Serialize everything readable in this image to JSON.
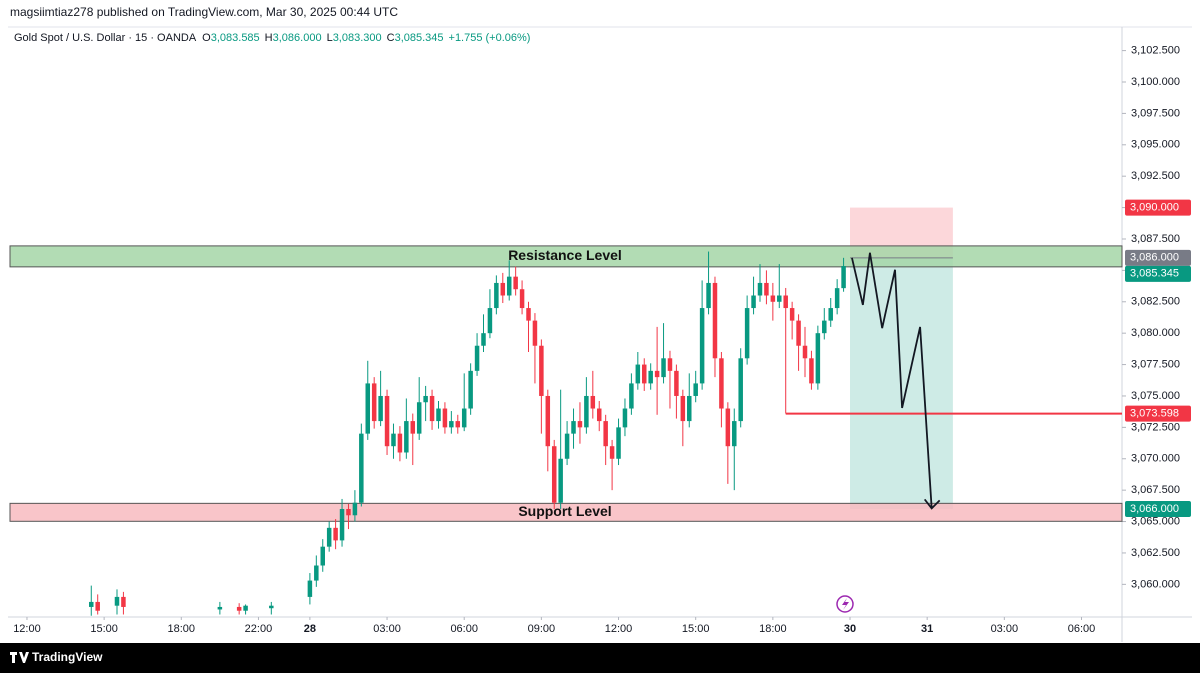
{
  "header": {
    "publisher": "magsiimtiaz278 published on TradingView.com, Mar 30, 2025 00:44 UTC",
    "footer": "TradingView"
  },
  "chart_data": {
    "type": "candlestick",
    "title": "Gold Spot / U.S. Dollar · 15 · OANDA",
    "ohlc_legend": [
      {
        "key": "O",
        "value": "3,083.585"
      },
      {
        "key": "H",
        "value": "3,086.000"
      },
      {
        "key": "L",
        "value": "3,083.300"
      },
      {
        "key": "C",
        "value": "3,085.345"
      }
    ],
    "change": "+1.755 (+0.06%)",
    "up_color": "#089981",
    "down_color": "#f23645",
    "xlim": [
      -2.95,
      170.3
    ],
    "ylim": [
      3057.4,
      3104.3
    ],
    "grid": false,
    "xticks": [
      {
        "value": 0,
        "label": "12:00"
      },
      {
        "value": 12,
        "label": "15:00"
      },
      {
        "value": 24,
        "label": "18:00"
      },
      {
        "value": 36,
        "label": "22:00"
      },
      {
        "value": 44,
        "label": "28"
      },
      {
        "value": 56,
        "label": "03:00"
      },
      {
        "value": 68,
        "label": "06:00"
      },
      {
        "value": 80,
        "label": "09:00"
      },
      {
        "value": 92,
        "label": "12:00"
      },
      {
        "value": 104,
        "label": "15:00"
      },
      {
        "value": 116,
        "label": "18:00"
      },
      {
        "value": 128,
        "label": "30"
      },
      {
        "value": 140,
        "label": "31"
      },
      {
        "value": 152,
        "label": "03:00"
      },
      {
        "value": 164,
        "label": "06:00"
      }
    ],
    "yticks": [
      {
        "value": 3060,
        "label": "3,060.000"
      },
      {
        "value": 3062.5,
        "label": "3,062.500"
      },
      {
        "value": 3065,
        "label": "3,065.000"
      },
      {
        "value": 3067.5,
        "label": "3,067.500"
      },
      {
        "value": 3070,
        "label": "3,070.000"
      },
      {
        "value": 3072.5,
        "label": "3,072.500"
      },
      {
        "value": 3075,
        "label": "3,075.000"
      },
      {
        "value": 3077.5,
        "label": "3,077.500"
      },
      {
        "value": 3080,
        "label": "3,080.000"
      },
      {
        "value": 3082.5,
        "label": "3,082.500"
      },
      {
        "value": 3085,
        "label": "3,085.000"
      },
      {
        "value": 3087.5,
        "label": "3,087.500"
      },
      {
        "value": 3090,
        "label": "3,090.000"
      },
      {
        "value": 3092.5,
        "label": "3,092.500"
      },
      {
        "value": 3095,
        "label": "3,095.000"
      },
      {
        "value": 3097.5,
        "label": "3,097.500"
      },
      {
        "value": 3100,
        "label": "3,100.000"
      },
      {
        "value": 3102.5,
        "label": "3,102.500"
      }
    ],
    "zones": [
      {
        "label": "Resistance Level",
        "low": 3085.28,
        "high": 3086.95,
        "color": "#a5d6a7"
      },
      {
        "label": "Support Level",
        "low": 3065.02,
        "high": 3066.45,
        "color": "#f8bbc0"
      }
    ],
    "position": {
      "x0": 128,
      "x1": 144,
      "stop": {
        "value": 3090,
        "label": "3,090.000"
      },
      "entry": {
        "value": 3086,
        "label": "3,086.000"
      },
      "target": {
        "value": 3066,
        "label": "3,066.000"
      }
    },
    "last_price": {
      "value": 3085.345,
      "label": "3,085.345"
    },
    "hline": {
      "x0": 118,
      "value": 3073.598,
      "label": "3,073.598",
      "color": "#f23645"
    },
    "projection": {
      "x": [
        128.3,
        130,
        131.1,
        133,
        135,
        136.1,
        138.9,
        140.7
      ],
      "y": [
        3086,
        3082.25,
        3086.4,
        3080.4,
        3085.05,
        3074.05,
        3080.5,
        3066.05
      ]
    },
    "candles": [
      {
        "x": 10,
        "o": 3058.2,
        "h": 3059.9,
        "l": 3057.5,
        "c": 3058.6
      },
      {
        "x": 11,
        "o": 3058.6,
        "h": 3059.2,
        "l": 3057.6,
        "c": 3057.9
      },
      {
        "x": 14,
        "o": 3058.3,
        "h": 3059.6,
        "l": 3057.6,
        "c": 3059.0
      },
      {
        "x": 15,
        "o": 3059.0,
        "h": 3059.4,
        "l": 3057.6,
        "c": 3058.2
      },
      {
        "x": 30,
        "o": 3058.0,
        "h": 3058.6,
        "l": 3057.6,
        "c": 3058.2
      },
      {
        "x": 33,
        "o": 3058.2,
        "h": 3058.5,
        "l": 3057.6,
        "c": 3057.9
      },
      {
        "x": 34,
        "o": 3057.9,
        "h": 3058.4,
        "l": 3057.6,
        "c": 3058.3
      },
      {
        "x": 38,
        "o": 3058.1,
        "h": 3058.6,
        "l": 3057.6,
        "c": 3058.3
      },
      {
        "x": 44,
        "o": 3059.0,
        "h": 3060.9,
        "l": 3058.4,
        "c": 3060.3
      },
      {
        "x": 45,
        "o": 3060.3,
        "h": 3062.3,
        "l": 3059.8,
        "c": 3061.5
      },
      {
        "x": 46,
        "o": 3061.5,
        "h": 3063.6,
        "l": 3061,
        "c": 3063
      },
      {
        "x": 47,
        "o": 3063,
        "h": 3065,
        "l": 3062.6,
        "c": 3064.5
      },
      {
        "x": 48,
        "o": 3064.5,
        "h": 3065.2,
        "l": 3062.8,
        "c": 3063.5
      },
      {
        "x": 49,
        "o": 3063.5,
        "h": 3066.8,
        "l": 3063,
        "c": 3066
      },
      {
        "x": 50,
        "o": 3066,
        "h": 3066.4,
        "l": 3064.4,
        "c": 3065.5
      },
      {
        "x": 51,
        "o": 3065.5,
        "h": 3067.5,
        "l": 3065,
        "c": 3066.5
      },
      {
        "x": 52,
        "o": 3066.5,
        "h": 3072.8,
        "l": 3066.2,
        "c": 3072
      },
      {
        "x": 53,
        "o": 3072,
        "h": 3077.8,
        "l": 3071.5,
        "c": 3076
      },
      {
        "x": 54,
        "o": 3076,
        "h": 3076.5,
        "l": 3072.4,
        "c": 3073
      },
      {
        "x": 55,
        "o": 3073,
        "h": 3077,
        "l": 3072.6,
        "c": 3075
      },
      {
        "x": 56,
        "o": 3075,
        "h": 3075.5,
        "l": 3070.3,
        "c": 3071
      },
      {
        "x": 57,
        "o": 3071,
        "h": 3072.8,
        "l": 3070,
        "c": 3072
      },
      {
        "x": 58,
        "o": 3072,
        "h": 3072.6,
        "l": 3069.8,
        "c": 3070.5
      },
      {
        "x": 59,
        "o": 3070.5,
        "h": 3074.8,
        "l": 3070,
        "c": 3073
      },
      {
        "x": 60,
        "o": 3073,
        "h": 3073.6,
        "l": 3069.5,
        "c": 3072
      },
      {
        "x": 61,
        "o": 3072,
        "h": 3076.5,
        "l": 3071.5,
        "c": 3074.5
      },
      {
        "x": 62,
        "o": 3074.5,
        "h": 3075.8,
        "l": 3073,
        "c": 3075
      },
      {
        "x": 63,
        "o": 3075,
        "h": 3075.5,
        "l": 3072.3,
        "c": 3073
      },
      {
        "x": 64,
        "o": 3073,
        "h": 3074.6,
        "l": 3072.4,
        "c": 3074
      },
      {
        "x": 65,
        "o": 3074,
        "h": 3074.5,
        "l": 3072,
        "c": 3072.5
      },
      {
        "x": 66,
        "o": 3072.5,
        "h": 3073.8,
        "l": 3072,
        "c": 3073
      },
      {
        "x": 67,
        "o": 3073,
        "h": 3073.5,
        "l": 3072,
        "c": 3072.5
      },
      {
        "x": 68,
        "o": 3072.5,
        "h": 3076.8,
        "l": 3072.2,
        "c": 3074
      },
      {
        "x": 69,
        "o": 3074,
        "h": 3077.6,
        "l": 3073.5,
        "c": 3077
      },
      {
        "x": 70,
        "o": 3077,
        "h": 3080,
        "l": 3076.6,
        "c": 3079
      },
      {
        "x": 71,
        "o": 3079,
        "h": 3081.5,
        "l": 3078.5,
        "c": 3080
      },
      {
        "x": 72,
        "o": 3080,
        "h": 3083.5,
        "l": 3079.6,
        "c": 3082
      },
      {
        "x": 73,
        "o": 3082,
        "h": 3084.6,
        "l": 3081.5,
        "c": 3084
      },
      {
        "x": 74,
        "o": 3084,
        "h": 3084.8,
        "l": 3082.4,
        "c": 3083
      },
      {
        "x": 75,
        "o": 3083,
        "h": 3085.8,
        "l": 3082.6,
        "c": 3084.5
      },
      {
        "x": 76,
        "o": 3084.5,
        "h": 3085.3,
        "l": 3083,
        "c": 3083.5
      },
      {
        "x": 77,
        "o": 3083.5,
        "h": 3084.2,
        "l": 3081.5,
        "c": 3082
      },
      {
        "x": 78,
        "o": 3082,
        "h": 3082.5,
        "l": 3078.5,
        "c": 3081
      },
      {
        "x": 79,
        "o": 3081,
        "h": 3081.6,
        "l": 3076,
        "c": 3079
      },
      {
        "x": 80,
        "o": 3079,
        "h": 3079.5,
        "l": 3072,
        "c": 3075
      },
      {
        "x": 81,
        "o": 3075,
        "h": 3075.5,
        "l": 3069,
        "c": 3071
      },
      {
        "x": 82,
        "o": 3071,
        "h": 3071.5,
        "l": 3066,
        "c": 3066.5
      },
      {
        "x": 83,
        "o": 3066.5,
        "h": 3075.5,
        "l": 3066,
        "c": 3070
      },
      {
        "x": 84,
        "o": 3070,
        "h": 3073,
        "l": 3069.5,
        "c": 3072
      },
      {
        "x": 85,
        "o": 3072,
        "h": 3074,
        "l": 3070.8,
        "c": 3073
      },
      {
        "x": 86,
        "o": 3073,
        "h": 3074.5,
        "l": 3071.2,
        "c": 3072.5
      },
      {
        "x": 87,
        "o": 3072.5,
        "h": 3076.5,
        "l": 3072,
        "c": 3075
      },
      {
        "x": 88,
        "o": 3075,
        "h": 3077,
        "l": 3073.2,
        "c": 3074
      },
      {
        "x": 89,
        "o": 3074,
        "h": 3074.6,
        "l": 3072.2,
        "c": 3073
      },
      {
        "x": 90,
        "o": 3073,
        "h": 3073.5,
        "l": 3069.5,
        "c": 3071
      },
      {
        "x": 91,
        "o": 3071,
        "h": 3071.5,
        "l": 3067.5,
        "c": 3070
      },
      {
        "x": 92,
        "o": 3070,
        "h": 3073.2,
        "l": 3069.5,
        "c": 3072.5
      },
      {
        "x": 93,
        "o": 3072.5,
        "h": 3074.8,
        "l": 3071.8,
        "c": 3074
      },
      {
        "x": 94,
        "o": 3074,
        "h": 3076.8,
        "l": 3073.5,
        "c": 3076
      },
      {
        "x": 95,
        "o": 3076,
        "h": 3078.5,
        "l": 3075.5,
        "c": 3077.5
      },
      {
        "x": 96,
        "o": 3077.5,
        "h": 3078,
        "l": 3075.4,
        "c": 3076
      },
      {
        "x": 97,
        "o": 3076,
        "h": 3077.6,
        "l": 3075.5,
        "c": 3077
      },
      {
        "x": 98,
        "o": 3077,
        "h": 3080.5,
        "l": 3073.5,
        "c": 3076.5
      },
      {
        "x": 99,
        "o": 3076.5,
        "h": 3080.8,
        "l": 3076,
        "c": 3078
      },
      {
        "x": 100,
        "o": 3078,
        "h": 3078.6,
        "l": 3074,
        "c": 3077
      },
      {
        "x": 101,
        "o": 3077,
        "h": 3077.5,
        "l": 3073.2,
        "c": 3075
      },
      {
        "x": 102,
        "o": 3075,
        "h": 3075.5,
        "l": 3071,
        "c": 3073
      },
      {
        "x": 103,
        "o": 3073,
        "h": 3076.8,
        "l": 3072.5,
        "c": 3075
      },
      {
        "x": 104,
        "o": 3075,
        "h": 3077,
        "l": 3074.5,
        "c": 3076
      },
      {
        "x": 105,
        "o": 3076,
        "h": 3084.2,
        "l": 3075.5,
        "c": 3082
      },
      {
        "x": 106,
        "o": 3082,
        "h": 3086.5,
        "l": 3081.5,
        "c": 3084
      },
      {
        "x": 107,
        "o": 3084,
        "h": 3084.5,
        "l": 3076.5,
        "c": 3078
      },
      {
        "x": 108,
        "o": 3078,
        "h": 3078.5,
        "l": 3072.5,
        "c": 3074
      },
      {
        "x": 109,
        "o": 3074,
        "h": 3074.5,
        "l": 3068,
        "c": 3071
      },
      {
        "x": 110,
        "o": 3071,
        "h": 3074,
        "l": 3067.5,
        "c": 3073
      },
      {
        "x": 111,
        "o": 3073,
        "h": 3078.8,
        "l": 3072.5,
        "c": 3078
      },
      {
        "x": 112,
        "o": 3078,
        "h": 3083,
        "l": 3077.5,
        "c": 3082
      },
      {
        "x": 113,
        "o": 3082,
        "h": 3084.5,
        "l": 3081.5,
        "c": 3083
      },
      {
        "x": 114,
        "o": 3083,
        "h": 3085.5,
        "l": 3082.5,
        "c": 3084
      },
      {
        "x": 115,
        "o": 3084,
        "h": 3085,
        "l": 3082.3,
        "c": 3083
      },
      {
        "x": 116,
        "o": 3083,
        "h": 3084,
        "l": 3081,
        "c": 3082.5
      },
      {
        "x": 117,
        "o": 3082.5,
        "h": 3085.5,
        "l": 3082,
        "c": 3083
      },
      {
        "x": 118,
        "o": 3083,
        "h": 3083.6,
        "l": 3073.6,
        "c": 3082
      },
      {
        "x": 119,
        "o": 3082,
        "h": 3082.5,
        "l": 3079.5,
        "c": 3081
      },
      {
        "x": 120,
        "o": 3081,
        "h": 3081.5,
        "l": 3077,
        "c": 3079
      },
      {
        "x": 121,
        "o": 3079,
        "h": 3080.5,
        "l": 3076.5,
        "c": 3078
      },
      {
        "x": 122,
        "o": 3078,
        "h": 3078.6,
        "l": 3075.5,
        "c": 3076
      },
      {
        "x": 123,
        "o": 3076,
        "h": 3080.6,
        "l": 3075.5,
        "c": 3080
      },
      {
        "x": 124,
        "o": 3080,
        "h": 3082,
        "l": 3079.5,
        "c": 3081
      },
      {
        "x": 125,
        "o": 3081,
        "h": 3082.8,
        "l": 3080.5,
        "c": 3082
      },
      {
        "x": 126,
        "o": 3082,
        "h": 3084.3,
        "l": 3081.5,
        "c": 3083.585
      },
      {
        "x": 127,
        "o": 3083.585,
        "h": 3086,
        "l": 3083.3,
        "c": 3085.345
      }
    ]
  }
}
